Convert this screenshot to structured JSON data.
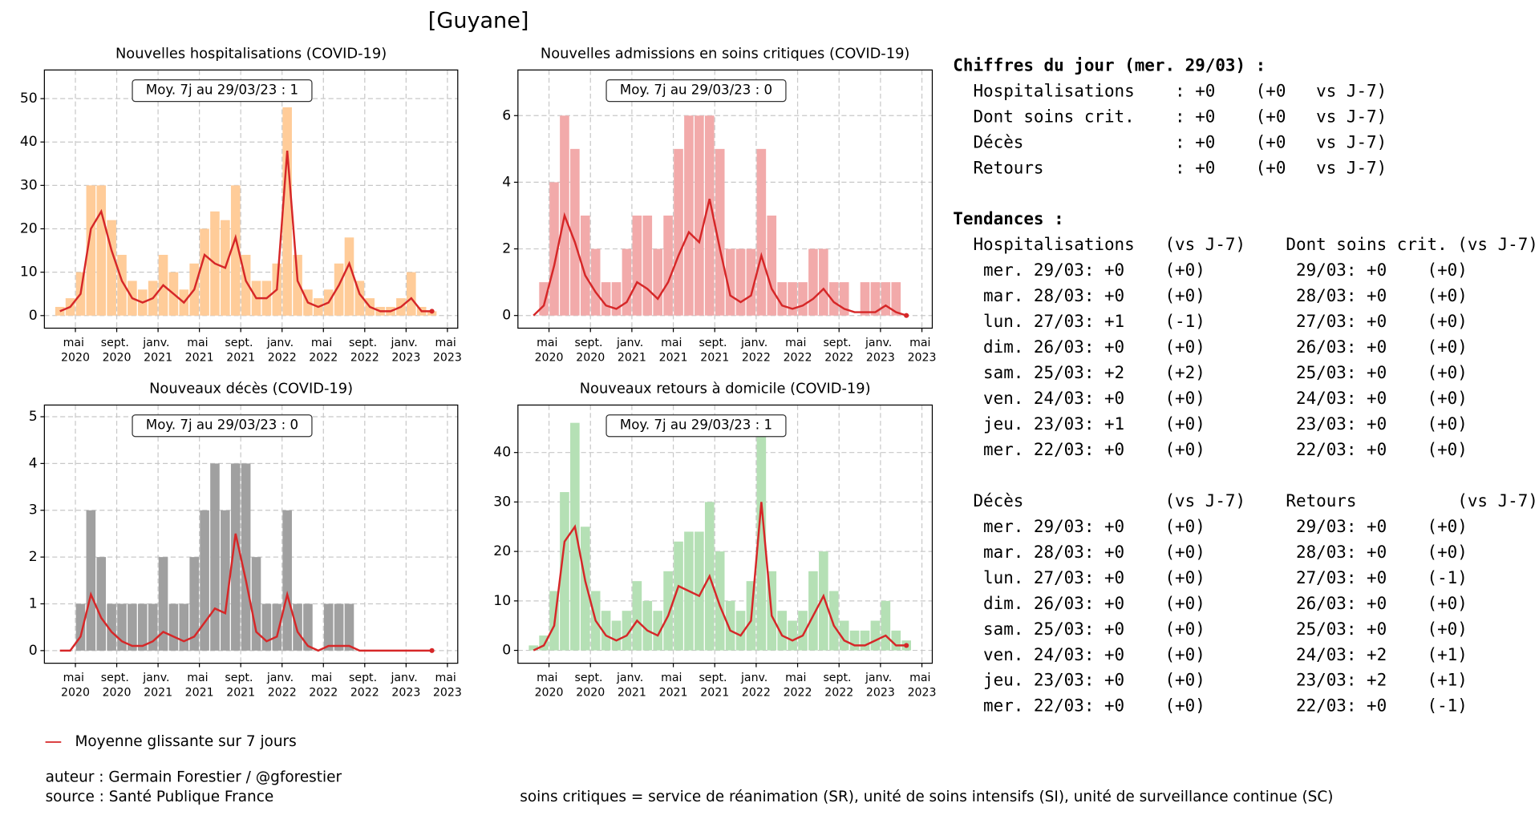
{
  "title": "[Guyane]",
  "charts": [
    {
      "chart_data": {
        "type": "bar",
        "title": "Nouvelles hospitalisations (COVID-19)",
        "annotation": "Moy. 7j au 29/03/23 : 1",
        "x": [
          "2020-03",
          "2020-04",
          "2020-05",
          "2020-06",
          "2020-07",
          "2020-08",
          "2020-09",
          "2020-10",
          "2020-11",
          "2020-12",
          "2021-01",
          "2021-02",
          "2021-03",
          "2021-04",
          "2021-05",
          "2021-06",
          "2021-07",
          "2021-08",
          "2021-09",
          "2021-10",
          "2021-11",
          "2021-12",
          "2022-01",
          "2022-02",
          "2022-03",
          "2022-04",
          "2022-05",
          "2022-06",
          "2022-07",
          "2022-08",
          "2022-09",
          "2022-10",
          "2022-11",
          "2022-12",
          "2023-01",
          "2023-02",
          "2023-03"
        ],
        "values": [
          2,
          4,
          10,
          30,
          30,
          22,
          14,
          8,
          6,
          8,
          14,
          10,
          6,
          12,
          20,
          24,
          22,
          30,
          14,
          8,
          8,
          12,
          48,
          14,
          6,
          4,
          6,
          12,
          18,
          8,
          4,
          2,
          2,
          4,
          10,
          2,
          1
        ],
        "color": "#ffcc99",
        "avg_values": [
          1,
          2,
          5,
          20,
          24,
          15,
          8,
          4,
          3,
          4,
          7,
          5,
          3,
          6,
          14,
          12,
          11,
          18,
          8,
          4,
          4,
          6,
          38,
          8,
          3,
          2,
          3,
          7,
          12,
          5,
          2,
          1,
          1,
          2,
          4,
          1,
          1
        ],
        "avg_color": "#d62728",
        "xlim": [
          "2020-02",
          "2023-06"
        ],
        "xticks": [
          {
            "value": "2020-05",
            "label": "mai 2020"
          },
          {
            "value": "2020-09",
            "label": "sept. 2020"
          },
          {
            "value": "2021-01",
            "label": "janv. 2021"
          },
          {
            "value": "2021-05",
            "label": "mai 2021"
          },
          {
            "value": "2021-09",
            "label": "sept. 2021"
          },
          {
            "value": "2022-01",
            "label": "janv. 2022"
          },
          {
            "value": "2022-05",
            "label": "mai 2022"
          },
          {
            "value": "2022-09",
            "label": "sept. 2022"
          },
          {
            "value": "2023-01",
            "label": "janv. 2023"
          },
          {
            "value": "2023-05",
            "label": "mai 2023"
          }
        ],
        "ylim": [
          -2.9,
          56.6
        ],
        "yticks": [
          0,
          10,
          20,
          30,
          40,
          50
        ],
        "grid": true
      }
    },
    {
      "chart_data": {
        "type": "bar",
        "title": "Nouvelles admissions en soins critiques (COVID-19)",
        "annotation": "Moy. 7j au 29/03/23 : 0",
        "x": [
          "2020-03",
          "2020-04",
          "2020-05",
          "2020-06",
          "2020-07",
          "2020-08",
          "2020-09",
          "2020-10",
          "2020-11",
          "2020-12",
          "2021-01",
          "2021-02",
          "2021-03",
          "2021-04",
          "2021-05",
          "2021-06",
          "2021-07",
          "2021-08",
          "2021-09",
          "2021-10",
          "2021-11",
          "2021-12",
          "2022-01",
          "2022-02",
          "2022-03",
          "2022-04",
          "2022-05",
          "2022-06",
          "2022-07",
          "2022-08",
          "2022-09",
          "2022-10",
          "2022-11",
          "2022-12",
          "2023-01",
          "2023-02",
          "2023-03"
        ],
        "values": [
          0,
          1,
          4,
          6,
          5,
          3,
          2,
          1,
          1,
          2,
          3,
          3,
          2,
          3,
          5,
          6,
          6,
          6,
          5,
          2,
          2,
          2,
          5,
          3,
          1,
          1,
          1,
          2,
          2,
          1,
          1,
          0,
          1,
          1,
          1,
          1,
          0
        ],
        "color": "#f2aaaa",
        "avg_values": [
          0,
          0.3,
          1.5,
          3,
          2.2,
          1.2,
          0.7,
          0.3,
          0.2,
          0.4,
          1,
          0.8,
          0.5,
          1,
          1.8,
          2.5,
          2.2,
          3.5,
          2,
          0.6,
          0.4,
          0.6,
          1.8,
          0.8,
          0.3,
          0.2,
          0.3,
          0.5,
          0.8,
          0.4,
          0.2,
          0.1,
          0.1,
          0.1,
          0.3,
          0.1,
          0
        ],
        "avg_color": "#d62728",
        "xlim": [
          "2020-02",
          "2023-06"
        ],
        "xticks": [
          {
            "value": "2020-05",
            "label": "mai 2020"
          },
          {
            "value": "2020-09",
            "label": "sept. 2020"
          },
          {
            "value": "2021-01",
            "label": "janv. 2021"
          },
          {
            "value": "2021-05",
            "label": "mai 2021"
          },
          {
            "value": "2021-09",
            "label": "sept. 2021"
          },
          {
            "value": "2022-01",
            "label": "janv. 2022"
          },
          {
            "value": "2022-05",
            "label": "mai 2022"
          },
          {
            "value": "2022-09",
            "label": "sept. 2022"
          },
          {
            "value": "2023-01",
            "label": "janv. 2023"
          },
          {
            "value": "2023-05",
            "label": "mai 2023"
          }
        ],
        "ylim": [
          -0.38,
          7.37
        ],
        "yticks": [
          0,
          2,
          4,
          6
        ],
        "grid": true
      }
    },
    {
      "chart_data": {
        "type": "bar",
        "title": "Nouveaux décès (COVID-19)",
        "annotation": "Moy. 7j au 29/03/23 : 0",
        "x": [
          "2020-03",
          "2020-04",
          "2020-05",
          "2020-06",
          "2020-07",
          "2020-08",
          "2020-09",
          "2020-10",
          "2020-11",
          "2020-12",
          "2021-01",
          "2021-02",
          "2021-03",
          "2021-04",
          "2021-05",
          "2021-06",
          "2021-07",
          "2021-08",
          "2021-09",
          "2021-10",
          "2021-11",
          "2021-12",
          "2022-01",
          "2022-02",
          "2022-03",
          "2022-04",
          "2022-05",
          "2022-06",
          "2022-07",
          "2022-08",
          "2022-09",
          "2022-10",
          "2022-11",
          "2022-12",
          "2023-01",
          "2023-02",
          "2023-03"
        ],
        "values": [
          0,
          0,
          1,
          3,
          2,
          1,
          1,
          1,
          1,
          1,
          2,
          1,
          1,
          2,
          3,
          4,
          3,
          4,
          4,
          2,
          1,
          1,
          3,
          1,
          1,
          0,
          1,
          1,
          1,
          0,
          0,
          0,
          0,
          0,
          0,
          0,
          0
        ],
        "color": "#a0a0a0",
        "avg_values": [
          0,
          0,
          0.3,
          1.2,
          0.7,
          0.4,
          0.2,
          0.1,
          0.1,
          0.2,
          0.4,
          0.3,
          0.2,
          0.3,
          0.6,
          0.9,
          0.8,
          2.5,
          1.5,
          0.4,
          0.2,
          0.3,
          1.2,
          0.4,
          0.1,
          0,
          0.1,
          0.1,
          0.1,
          0,
          0,
          0,
          0,
          0,
          0,
          0,
          0
        ],
        "avg_color": "#d62728",
        "xlim": [
          "2020-02",
          "2023-06"
        ],
        "xticks": [
          {
            "value": "2020-05",
            "label": "mai 2020"
          },
          {
            "value": "2020-09",
            "label": "sept. 2020"
          },
          {
            "value": "2021-01",
            "label": "janv. 2021"
          },
          {
            "value": "2021-05",
            "label": "mai 2021"
          },
          {
            "value": "2021-09",
            "label": "sept. 2021"
          },
          {
            "value": "2022-01",
            "label": "janv. 2022"
          },
          {
            "value": "2022-05",
            "label": "mai 2022"
          },
          {
            "value": "2022-09",
            "label": "sept. 2022"
          },
          {
            "value": "2023-01",
            "label": "janv. 2023"
          },
          {
            "value": "2023-05",
            "label": "mai 2023"
          }
        ],
        "ylim": [
          -0.27,
          5.25
        ],
        "yticks": [
          0,
          1,
          2,
          3,
          4,
          5
        ],
        "grid": true
      }
    },
    {
      "chart_data": {
        "type": "bar",
        "title": "Nouveaux retours à domicile (COVID-19)",
        "annotation": "Moy. 7j au 29/03/23 : 1",
        "x": [
          "2020-03",
          "2020-04",
          "2020-05",
          "2020-06",
          "2020-07",
          "2020-08",
          "2020-09",
          "2020-10",
          "2020-11",
          "2020-12",
          "2021-01",
          "2021-02",
          "2021-03",
          "2021-04",
          "2021-05",
          "2021-06",
          "2021-07",
          "2021-08",
          "2021-09",
          "2021-10",
          "2021-11",
          "2021-12",
          "2022-01",
          "2022-02",
          "2022-03",
          "2022-04",
          "2022-05",
          "2022-06",
          "2022-07",
          "2022-08",
          "2022-09",
          "2022-10",
          "2022-11",
          "2022-12",
          "2023-01",
          "2023-02",
          "2023-03"
        ],
        "values": [
          1,
          3,
          12,
          32,
          46,
          25,
          12,
          8,
          6,
          8,
          14,
          10,
          8,
          16,
          22,
          24,
          24,
          30,
          20,
          10,
          8,
          14,
          44,
          16,
          8,
          6,
          8,
          16,
          20,
          12,
          6,
          4,
          4,
          6,
          10,
          4,
          2
        ],
        "color": "#b5e0b5",
        "avg_values": [
          0,
          1,
          5,
          22,
          25,
          14,
          6,
          3,
          2,
          3,
          6,
          4,
          3,
          7,
          13,
          12,
          11,
          15,
          9,
          4,
          3,
          6,
          30,
          7,
          3,
          2,
          3,
          7,
          11,
          5,
          2,
          1,
          1,
          2,
          3,
          1,
          1
        ],
        "avg_color": "#d62728",
        "xlim": [
          "2020-02",
          "2023-06"
        ],
        "xticks": [
          {
            "value": "2020-05",
            "label": "mai 2020"
          },
          {
            "value": "2020-09",
            "label": "sept. 2020"
          },
          {
            "value": "2021-01",
            "label": "janv. 2021"
          },
          {
            "value": "2021-05",
            "label": "mai 2021"
          },
          {
            "value": "2021-09",
            "label": "sept. 2021"
          },
          {
            "value": "2022-01",
            "label": "janv. 2022"
          },
          {
            "value": "2022-05",
            "label": "mai 2022"
          },
          {
            "value": "2022-09",
            "label": "sept. 2022"
          },
          {
            "value": "2023-01",
            "label": "janv. 2023"
          },
          {
            "value": "2023-05",
            "label": "mai 2023"
          }
        ],
        "ylim": [
          -2.6,
          49.6
        ],
        "yticks": [
          0,
          10,
          20,
          30,
          40
        ],
        "grid": true
      }
    }
  ],
  "legend": {
    "label": "Moyenne glissante sur 7 jours",
    "color": "#d62728"
  },
  "footer": {
    "author": "auteur : Germain Forestier / @gforestier",
    "source": "source : Santé Publique France",
    "note": "soins critiques = service de réanimation (SR), unité de soins intensifs (SI), unité de surveillance continue (SC)"
  },
  "panel": {
    "today_title": "Chiffres du jour (mer. 29/03) :",
    "today_lines": [
      "  Hospitalisations    : +0    (+0   vs J-7)",
      "  Dont soins crit.    : +0    (+0   vs J-7)",
      "  Décès               : +0    (+0   vs J-7)",
      "  Retours             : +0    (+0   vs J-7)"
    ],
    "trends_title": "Tendances :",
    "hosp_header": "  Hospitalisations   (vs J-7)    Dont soins crit. (vs J-7)",
    "hosp_rows": [
      "   mer. 29/03: +0    (+0)         29/03: +0    (+0)",
      "   mar. 28/03: +0    (+0)         28/03: +0    (+0)",
      "   lun. 27/03: +1    (-1)         27/03: +0    (+0)",
      "   dim. 26/03: +0    (+0)         26/03: +0    (+0)",
      "   sam. 25/03: +2    (+2)         25/03: +0    (+0)",
      "   ven. 24/03: +0    (+0)         24/03: +0    (+0)",
      "   jeu. 23/03: +1    (+0)         23/03: +0    (+0)",
      "   mer. 22/03: +0    (+0)         22/03: +0    (+0)"
    ],
    "deces_header": "  Décès              (vs J-7)    Retours          (vs J-7)",
    "deces_rows": [
      "   mer. 29/03: +0    (+0)         29/03: +0    (+0)",
      "   mar. 28/03: +0    (+0)         28/03: +0    (+0)",
      "   lun. 27/03: +0    (+0)         27/03: +0    (-1)",
      "   dim. 26/03: +0    (+0)         26/03: +0    (+0)",
      "   sam. 25/03: +0    (+0)         25/03: +0    (+0)",
      "   ven. 24/03: +0    (+0)         24/03: +2    (+1)",
      "   jeu. 23/03: +0    (+0)         23/03: +2    (+1)",
      "   mer. 22/03: +0    (+0)         22/03: +0    (-1)"
    ]
  }
}
